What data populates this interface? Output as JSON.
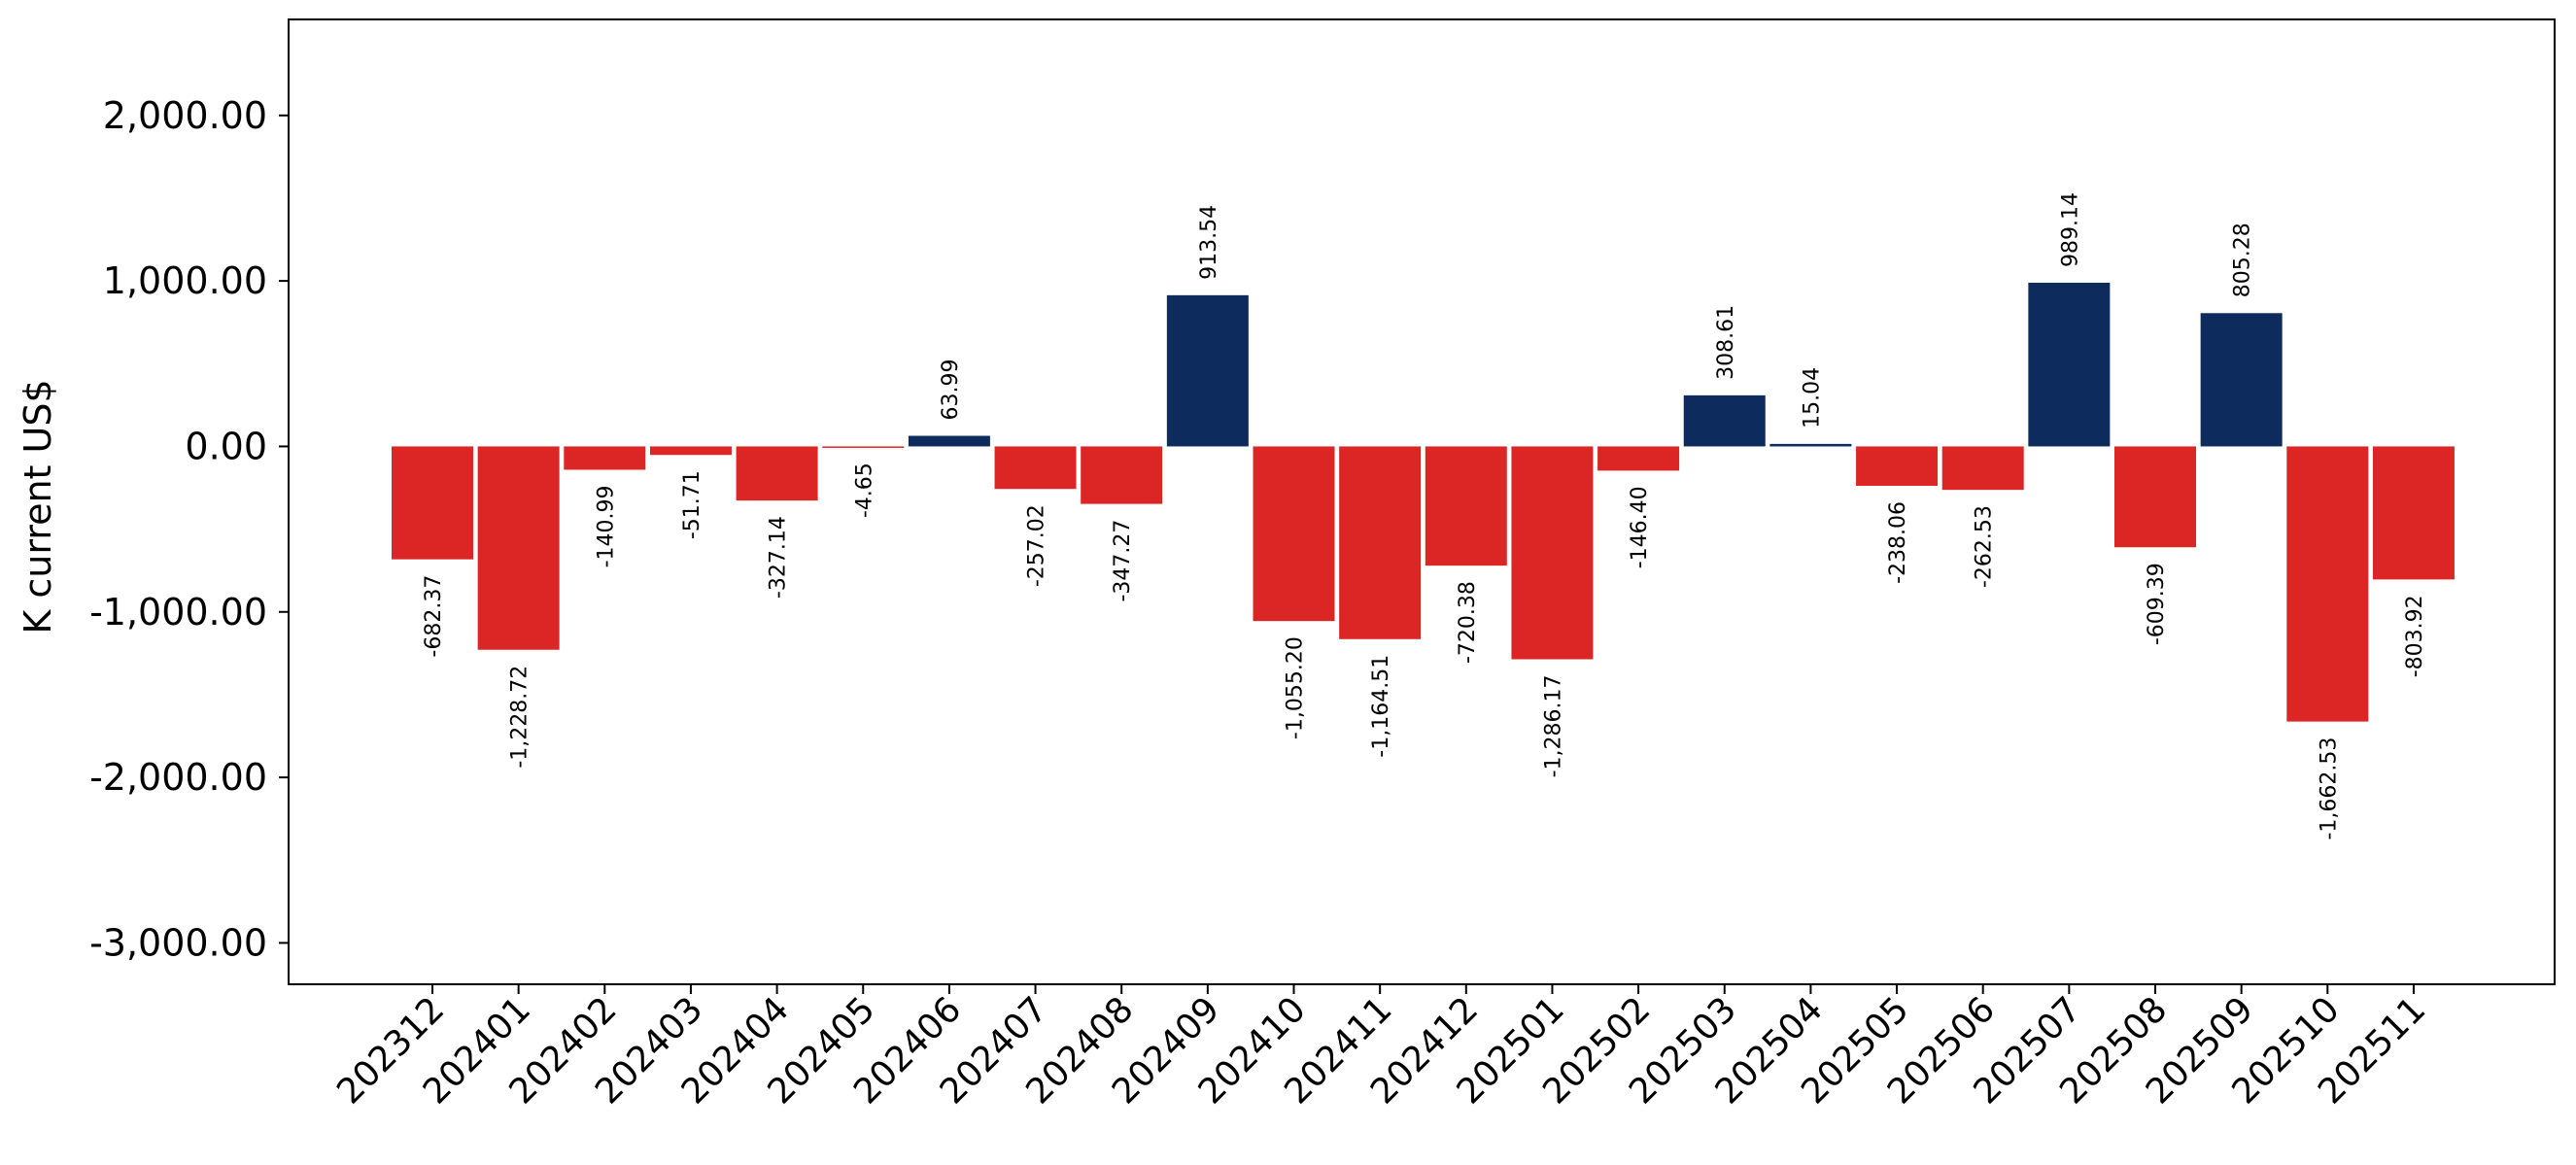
{
  "chart_data": {
    "type": "bar",
    "title": "",
    "xlabel": "",
    "ylabel": "K current US$",
    "ylim": [
      -3250,
      2580
    ],
    "yticks": [
      2000,
      1000,
      0,
      -1000,
      -2000,
      -3000
    ],
    "ytick_labels": [
      "2,000.00",
      "1,000.00",
      "0.00",
      "-1,000.00",
      "-2,000.00",
      "-3,000.00"
    ],
    "categories": [
      "202312",
      "202401",
      "202402",
      "202403",
      "202404",
      "202405",
      "202406",
      "202407",
      "202408",
      "202409",
      "202410",
      "202411",
      "202412",
      "202501",
      "202502",
      "202503",
      "202504",
      "202505",
      "202506",
      "202507",
      "202508",
      "202509",
      "202510",
      "202511"
    ],
    "values": [
      -682.37,
      -1228.72,
      -140.99,
      -51.71,
      -327.14,
      -4.65,
      63.99,
      -257.02,
      -347.27,
      913.54,
      -1055.2,
      -1164.51,
      -720.38,
      -1286.17,
      -146.4,
      308.61,
      15.04,
      -238.06,
      -262.53,
      989.14,
      -609.39,
      805.28,
      -1662.53,
      -803.92
    ],
    "value_labels": [
      "-682.37",
      "-1,228.72",
      "-140.99",
      "-51.71",
      "-327.14",
      "-4.65",
      "63.99",
      "-257.02",
      "-347.27",
      "913.54",
      "-1,055.20",
      "-1,164.51",
      "-720.38",
      "-1,286.17",
      "-146.40",
      "308.61",
      "15.04",
      "-238.06",
      "-262.53",
      "989.14",
      "-609.39",
      "805.28",
      "-1,662.53",
      "-803.92"
    ],
    "colors": {
      "positive": "#0d2b5c",
      "negative": "#dc2626"
    },
    "grid": false,
    "legend": "none"
  }
}
